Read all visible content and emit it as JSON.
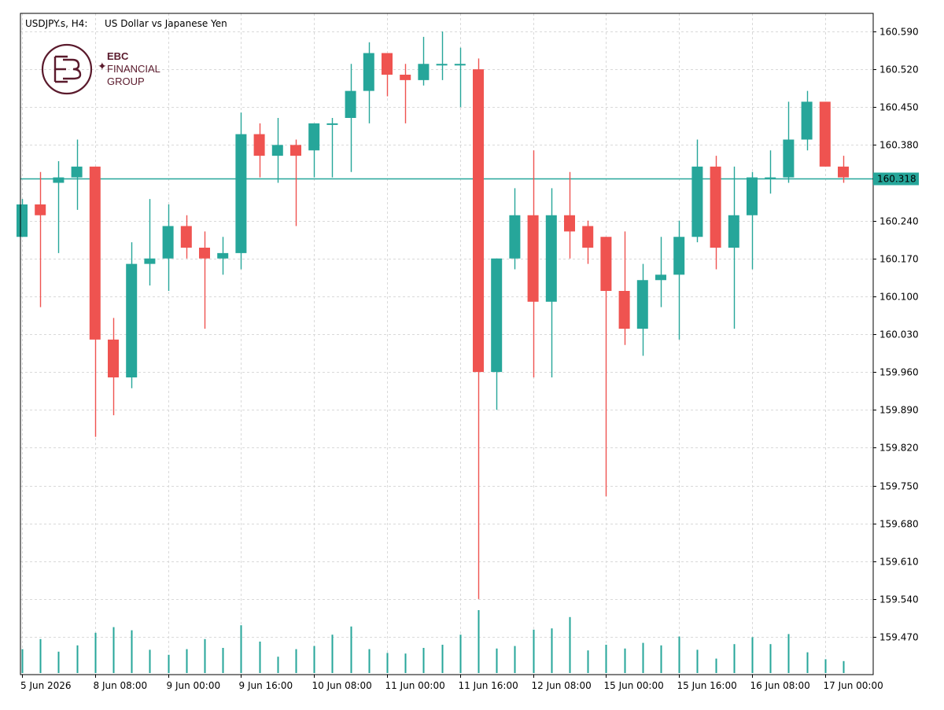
{
  "header": {
    "symbol": "USDJPY.s, H4:",
    "description": "US Dollar vs Japanese Yen"
  },
  "logo": {
    "line1": "EBC",
    "line2": "FINANCIAL",
    "line3": "GROUP",
    "color": "#5a1a2c"
  },
  "colors": {
    "bull": "#26a69a",
    "bear": "#ef5350",
    "grid": "#d9d9d9",
    "price_line": "#26a69a",
    "volume": "#26a69a"
  },
  "chart_data": {
    "type": "candlestick",
    "y_axis": {
      "min": 159.4,
      "max": 160.61,
      "ticks": [
        "160.590",
        "160.520",
        "160.450",
        "160.380",
        "160.240",
        "160.170",
        "160.100",
        "160.030",
        "159.960",
        "159.890",
        "159.820",
        "159.750",
        "159.680",
        "159.610",
        "159.540",
        "159.470"
      ]
    },
    "x_axis": {
      "tick_labels": [
        "5 Jun 2026",
        "8 Jun 08:00",
        "9 Jun 00:00",
        "9 Jun 16:00",
        "10 Jun 08:00",
        "11 Jun 00:00",
        "11 Jun 16:00",
        "12 Jun 08:00",
        "15 Jun 00:00",
        "15 Jun 16:00",
        "16 Jun 08:00",
        "17 Jun 00:00"
      ],
      "tick_bar_index": [
        0,
        4,
        8,
        12,
        16,
        20,
        24,
        28,
        32,
        36,
        40,
        44
      ]
    },
    "current_price": "160.318",
    "candles": [
      {
        "o": 160.21,
        "h": 160.28,
        "l": 160.21,
        "c": 160.27
      },
      {
        "o": 160.27,
        "h": 160.33,
        "l": 160.08,
        "c": 160.25
      },
      {
        "o": 160.31,
        "h": 160.35,
        "l": 160.18,
        "c": 160.32
      },
      {
        "o": 160.32,
        "h": 160.39,
        "l": 160.26,
        "c": 160.34
      },
      {
        "o": 160.34,
        "h": 160.34,
        "l": 159.84,
        "c": 160.02
      },
      {
        "o": 160.02,
        "h": 160.06,
        "l": 159.88,
        "c": 159.95
      },
      {
        "o": 159.95,
        "h": 160.2,
        "l": 159.93,
        "c": 160.16
      },
      {
        "o": 160.16,
        "h": 160.28,
        "l": 160.12,
        "c": 160.17
      },
      {
        "o": 160.17,
        "h": 160.27,
        "l": 160.11,
        "c": 160.23
      },
      {
        "o": 160.23,
        "h": 160.25,
        "l": 160.17,
        "c": 160.19
      },
      {
        "o": 160.19,
        "h": 160.22,
        "l": 160.04,
        "c": 160.17
      },
      {
        "o": 160.17,
        "h": 160.21,
        "l": 160.14,
        "c": 160.18
      },
      {
        "o": 160.18,
        "h": 160.44,
        "l": 160.15,
        "c": 160.4
      },
      {
        "o": 160.4,
        "h": 160.42,
        "l": 160.32,
        "c": 160.36
      },
      {
        "o": 160.36,
        "h": 160.43,
        "l": 160.31,
        "c": 160.38
      },
      {
        "o": 160.38,
        "h": 160.39,
        "l": 160.23,
        "c": 160.36
      },
      {
        "o": 160.37,
        "h": 160.42,
        "l": 160.32,
        "c": 160.42
      },
      {
        "o": 160.42,
        "h": 160.43,
        "l": 160.32,
        "c": 160.42
      },
      {
        "o": 160.43,
        "h": 160.53,
        "l": 160.33,
        "c": 160.48
      },
      {
        "o": 160.48,
        "h": 160.57,
        "l": 160.42,
        "c": 160.55
      },
      {
        "o": 160.55,
        "h": 160.55,
        "l": 160.47,
        "c": 160.51
      },
      {
        "o": 160.51,
        "h": 160.53,
        "l": 160.42,
        "c": 160.5
      },
      {
        "o": 160.5,
        "h": 160.58,
        "l": 160.49,
        "c": 160.53
      },
      {
        "o": 160.53,
        "h": 160.59,
        "l": 160.5,
        "c": 160.53
      },
      {
        "o": 160.53,
        "h": 160.56,
        "l": 160.45,
        "c": 160.53
      },
      {
        "o": 160.52,
        "h": 160.54,
        "l": 159.54,
        "c": 159.96
      },
      {
        "o": 159.96,
        "h": 160.17,
        "l": 159.89,
        "c": 160.17
      },
      {
        "o": 160.17,
        "h": 160.3,
        "l": 160.15,
        "c": 160.25
      },
      {
        "o": 160.25,
        "h": 160.37,
        "l": 159.95,
        "c": 160.09
      },
      {
        "o": 160.09,
        "h": 160.3,
        "l": 159.95,
        "c": 160.25
      },
      {
        "o": 160.25,
        "h": 160.33,
        "l": 160.17,
        "c": 160.22
      },
      {
        "o": 160.23,
        "h": 160.24,
        "l": 160.16,
        "c": 160.19
      },
      {
        "o": 160.21,
        "h": 160.21,
        "l": 159.73,
        "c": 160.11
      },
      {
        "o": 160.11,
        "h": 160.22,
        "l": 160.01,
        "c": 160.04
      },
      {
        "o": 160.04,
        "h": 160.16,
        "l": 159.99,
        "c": 160.13
      },
      {
        "o": 160.13,
        "h": 160.21,
        "l": 160.08,
        "c": 160.14
      },
      {
        "o": 160.14,
        "h": 160.24,
        "l": 160.02,
        "c": 160.21
      },
      {
        "o": 160.21,
        "h": 160.39,
        "l": 160.2,
        "c": 160.34
      },
      {
        "o": 160.34,
        "h": 160.36,
        "l": 160.15,
        "c": 160.19
      },
      {
        "o": 160.19,
        "h": 160.34,
        "l": 160.04,
        "c": 160.25
      },
      {
        "o": 160.25,
        "h": 160.33,
        "l": 160.15,
        "c": 160.32
      },
      {
        "o": 160.32,
        "h": 160.37,
        "l": 160.29,
        "c": 160.32
      },
      {
        "o": 160.32,
        "h": 160.46,
        "l": 160.31,
        "c": 160.39
      },
      {
        "o": 160.39,
        "h": 160.48,
        "l": 160.37,
        "c": 160.46
      },
      {
        "o": 160.46,
        "h": 160.46,
        "l": 160.34,
        "c": 160.34
      },
      {
        "o": 160.34,
        "h": 160.36,
        "l": 160.31,
        "c": 160.32
      }
    ],
    "volumes": [
      0.38,
      0.54,
      0.34,
      0.44,
      0.64,
      0.73,
      0.68,
      0.37,
      0.29,
      0.38,
      0.54,
      0.4,
      0.76,
      0.5,
      0.26,
      0.38,
      0.43,
      0.61,
      0.74,
      0.38,
      0.32,
      0.31,
      0.4,
      0.45,
      0.61,
      1.0,
      0.39,
      0.43,
      0.69,
      0.71,
      0.89,
      0.36,
      0.45,
      0.39,
      0.48,
      0.44,
      0.58,
      0.37,
      0.23,
      0.46,
      0.57,
      0.46,
      0.62,
      0.33,
      0.22,
      0.19
    ]
  }
}
